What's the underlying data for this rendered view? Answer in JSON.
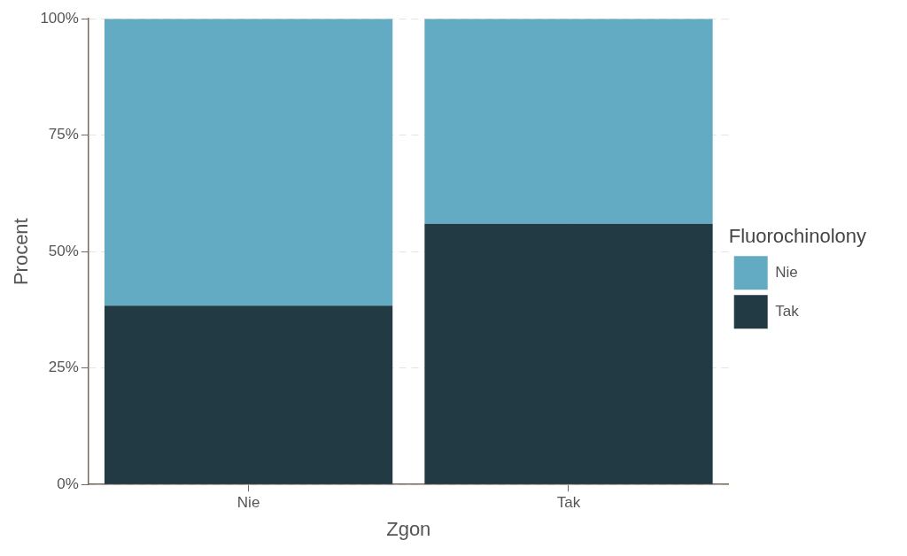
{
  "chart_data": {
    "type": "bar",
    "stacked": true,
    "xlabel": "Zgon",
    "ylabel": "Procent",
    "legend_title": "Fluorochinolony",
    "categories": [
      "Nie",
      "Tak"
    ],
    "series": [
      {
        "name": "Tak",
        "color": "#223a44",
        "values": [
          38.4,
          56
        ]
      },
      {
        "name": "Nie",
        "color": "#63abc2",
        "values": [
          61.6,
          44
        ]
      }
    ],
    "ylim": [
      0,
      100
    ],
    "yticks": [
      {
        "value": 0,
        "label": "0%"
      },
      {
        "value": 25,
        "label": "25%"
      },
      {
        "value": 50,
        "label": "50%"
      },
      {
        "value": 75,
        "label": "75%"
      },
      {
        "value": 100,
        "label": "100%"
      }
    ],
    "grid": true,
    "legend": "right"
  }
}
